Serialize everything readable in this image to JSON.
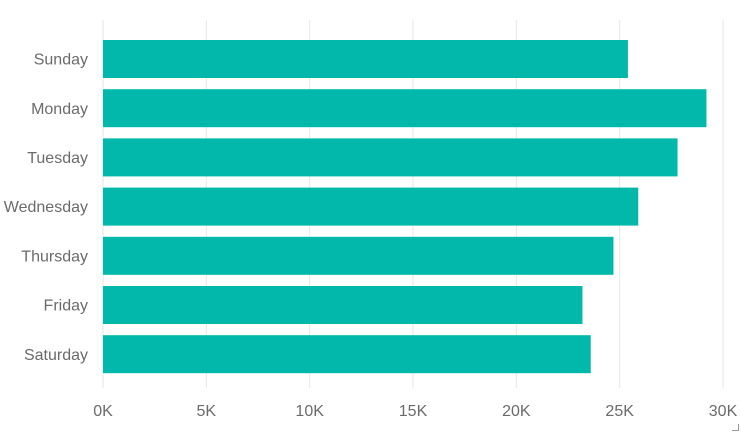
{
  "chart_data": {
    "type": "bar",
    "orientation": "horizontal",
    "categories": [
      "Sunday",
      "Monday",
      "Tuesday",
      "Wednesday",
      "Thursday",
      "Friday",
      "Saturday"
    ],
    "values": [
      25400,
      29200,
      27800,
      25900,
      24700,
      23200,
      23600
    ],
    "xlim": [
      0,
      30000
    ],
    "x_ticks": [
      "0K",
      "5K",
      "10K",
      "15K",
      "20K",
      "25K",
      "30K"
    ],
    "title": "",
    "xlabel": "",
    "ylabel": "",
    "grid": "vertical",
    "legend": "none",
    "colors": {
      "bar": "#01B8AA",
      "grid": "#E6E6E6",
      "label": "#6B6B6B"
    }
  }
}
